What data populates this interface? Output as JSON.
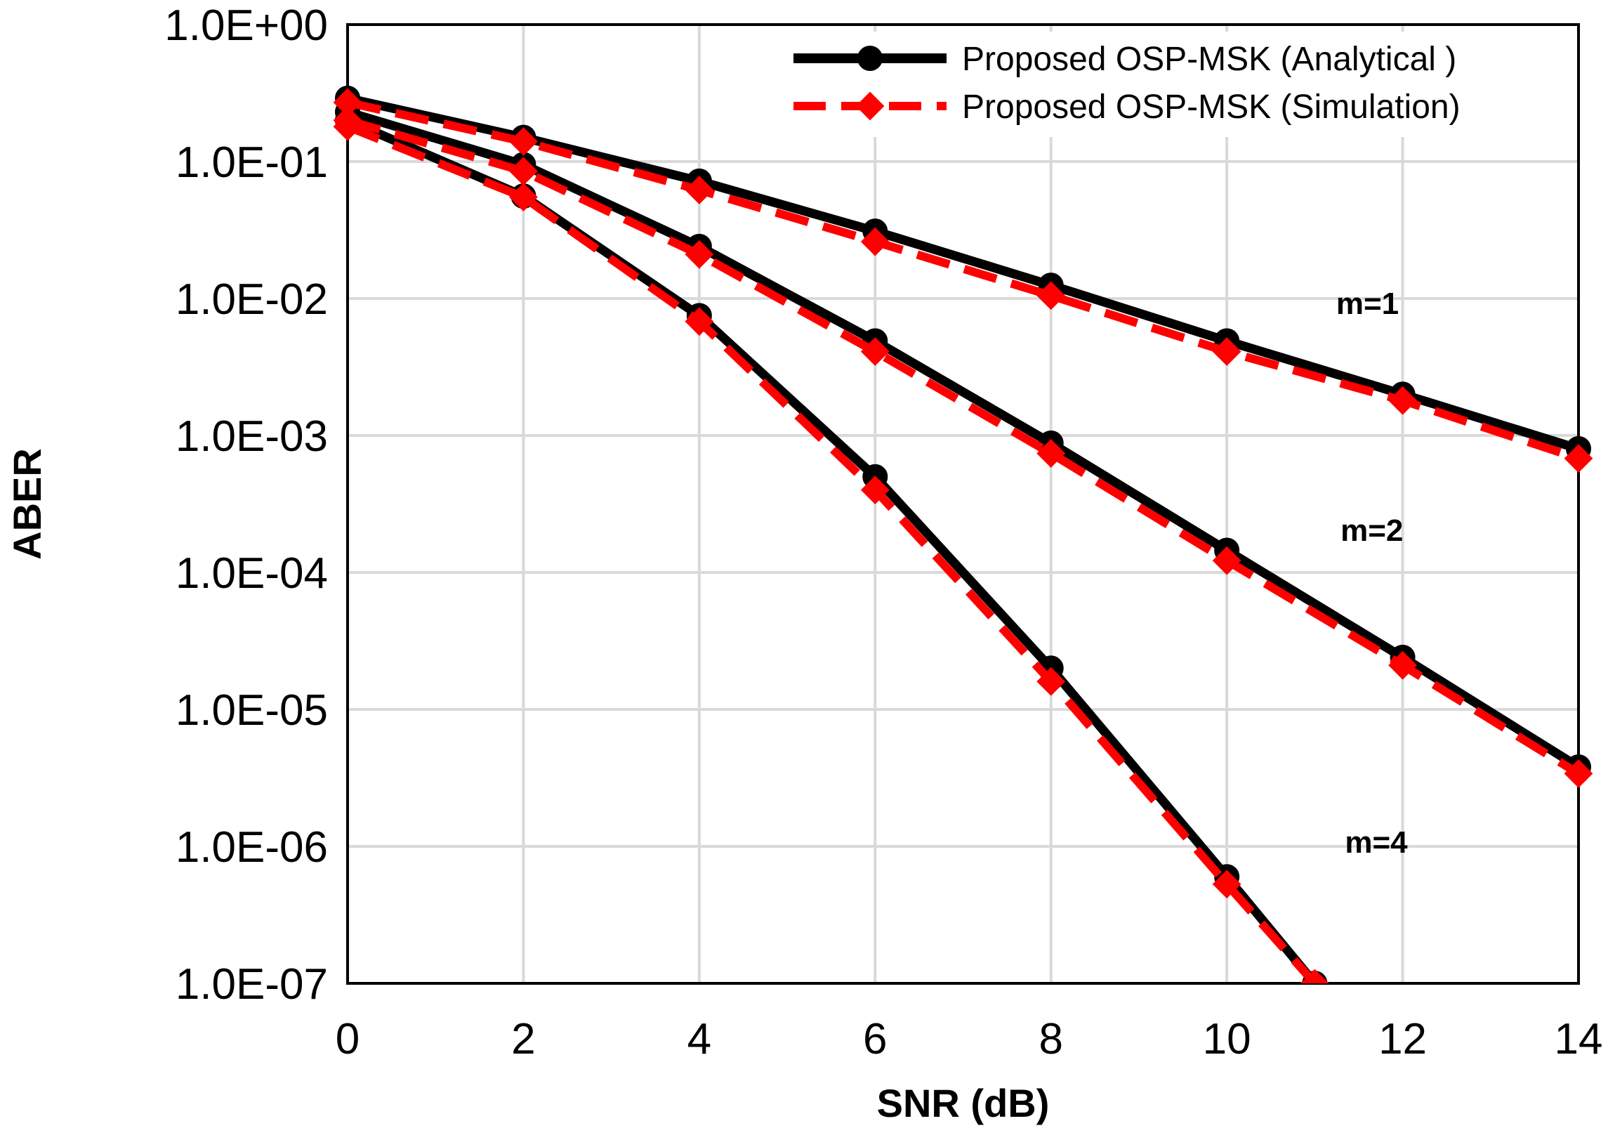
{
  "chart_data": {
    "type": "line",
    "title": "",
    "xlabel": "SNR (dB)",
    "ylabel": "ABER",
    "yscale": "log",
    "xlim": [
      0,
      14
    ],
    "ylim": [
      1e-07,
      1
    ],
    "x_ticks": [
      0,
      2,
      4,
      6,
      8,
      10,
      12,
      14
    ],
    "x_tick_labels": [
      "0",
      "2",
      "4",
      "6",
      "8",
      "10",
      "12",
      "14"
    ],
    "y_ticks": [
      1,
      0.1,
      0.01,
      0.001,
      0.0001,
      1e-05,
      1e-06,
      1e-07
    ],
    "y_tick_labels": [
      "1.0E+00",
      "1.0E-01",
      "1.0E-02",
      "1.0E-03",
      "1.0E-04",
      "1.0E-05",
      "1.0E-06",
      "1.0E-07"
    ],
    "grid": true,
    "legend_position": "top-right",
    "legend": [
      {
        "label": "Proposed OSP-MSK (Analytical )",
        "color": "#000000",
        "style": "solid",
        "marker": "circle"
      },
      {
        "label": "Proposed OSP-MSK (Simulation)",
        "color": "#ff0000",
        "style": "dashed",
        "marker": "diamond"
      }
    ],
    "series": [
      {
        "name": "Proposed OSP-MSK (Analytical ) m=1",
        "kind": "analytical",
        "color": "#000000",
        "x": [
          0,
          2,
          4,
          6,
          8,
          10,
          12,
          14
        ],
        "values": [
          0.29,
          0.15,
          0.072,
          0.031,
          0.0125,
          0.0049,
          0.002,
          0.0008
        ]
      },
      {
        "name": "Proposed OSP-MSK (Simulation) m=1",
        "kind": "simulation",
        "color": "#ff0000",
        "x": [
          0,
          2,
          4,
          6,
          8,
          10,
          12,
          14
        ],
        "values": [
          0.27,
          0.14,
          0.062,
          0.026,
          0.0105,
          0.0041,
          0.0018,
          0.00068
        ]
      },
      {
        "name": "Proposed OSP-MSK (Analytical ) m=2",
        "kind": "analytical",
        "color": "#000000",
        "x": [
          0,
          2,
          4,
          6,
          8,
          10,
          12,
          14
        ],
        "values": [
          0.23,
          0.095,
          0.024,
          0.0049,
          0.00088,
          0.000145,
          2.4e-05,
          3.8e-06
        ]
      },
      {
        "name": "Proposed OSP-MSK (Simulation) m=2",
        "kind": "simulation",
        "color": "#ff0000",
        "x": [
          0,
          2,
          4,
          6,
          8,
          10,
          12,
          14
        ],
        "values": [
          0.2,
          0.085,
          0.021,
          0.0041,
          0.00074,
          0.000122,
          2.1e-05,
          3.4e-06
        ]
      },
      {
        "name": "Proposed OSP-MSK (Analytical ) m=4",
        "kind": "analytical",
        "color": "#000000",
        "x": [
          0,
          2,
          4,
          6,
          8,
          10,
          11
        ],
        "values": [
          0.2,
          0.056,
          0.0075,
          0.0005,
          2e-05,
          6e-07,
          1e-07
        ]
      },
      {
        "name": "Proposed OSP-MSK (Simulation) m=4",
        "kind": "simulation",
        "color": "#ff0000",
        "x": [
          0,
          2,
          4,
          6,
          8,
          10,
          11
        ],
        "values": [
          0.18,
          0.055,
          0.0068,
          0.0004,
          1.6e-05,
          5.3e-07,
          1e-07
        ]
      }
    ],
    "annotations": [
      {
        "text": "m=1",
        "x": 11.6,
        "y": 0.0077
      },
      {
        "text": "m=2",
        "x": 11.65,
        "y": 0.00017
      },
      {
        "text": "m=4",
        "x": 11.7,
        "y": 9e-07
      }
    ]
  }
}
